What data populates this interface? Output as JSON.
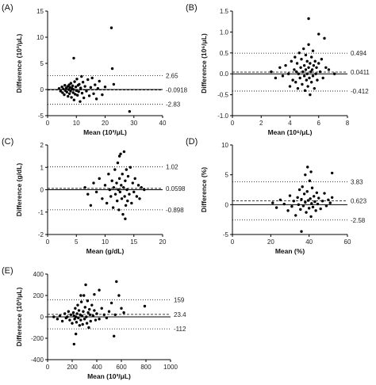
{
  "chart_data": [
    {
      "type": "scatter",
      "panel_label": "(A)",
      "xlabel": "Mean (10³/μL)",
      "ylabel": "Difference (10³/μL)",
      "xlim": [
        0,
        40
      ],
      "ylim": [
        -5,
        15
      ],
      "xticks": [
        "0",
        "10",
        "20",
        "30",
        "40"
      ],
      "yticks": [
        "-5",
        "0",
        "5",
        "10",
        "15"
      ],
      "reference_lines": [
        {
          "value": 2.65,
          "label": "2.65",
          "style": "dotted"
        },
        {
          "value": -0.0918,
          "label": "-0.0918",
          "style": "dashed"
        },
        {
          "value": -2.83,
          "label": "-2.83",
          "style": "dotted"
        }
      ],
      "zero_line": true,
      "points": [
        [
          4,
          0.2
        ],
        [
          4.5,
          -0.3
        ],
        [
          5,
          0.5
        ],
        [
          5.2,
          -0.6
        ],
        [
          5.5,
          0.1
        ],
        [
          5.8,
          -1.0
        ],
        [
          6,
          0.8
        ],
        [
          6.2,
          -0.2
        ],
        [
          6.5,
          0.3
        ],
        [
          6.7,
          -0.5
        ],
        [
          7,
          0.6
        ],
        [
          7.1,
          -1.3
        ],
        [
          7.3,
          0.0
        ],
        [
          7.5,
          0.9
        ],
        [
          7.6,
          -0.8
        ],
        [
          7.8,
          0.4
        ],
        [
          8,
          -0.3
        ],
        [
          8.1,
          1.2
        ],
        [
          8.3,
          -1.5
        ],
        [
          8.5,
          0.2
        ],
        [
          8.7,
          0.7
        ],
        [
          8.9,
          -0.6
        ],
        [
          9,
          0.0
        ],
        [
          9.1,
          6.0
        ],
        [
          9.2,
          -2.0
        ],
        [
          9.4,
          1.5
        ],
        [
          9.6,
          -0.9
        ],
        [
          9.8,
          0.5
        ],
        [
          10,
          -0.2
        ],
        [
          10.2,
          2.0
        ],
        [
          10.4,
          -1.1
        ],
        [
          10.6,
          0.8
        ],
        [
          10.8,
          -0.4
        ],
        [
          11,
          1.0
        ],
        [
          11.3,
          -2.3
        ],
        [
          11.5,
          0.3
        ],
        [
          11.8,
          2.5
        ],
        [
          12,
          -0.7
        ],
        [
          12.3,
          1.4
        ],
        [
          12.6,
          -1.6
        ],
        [
          13,
          0.6
        ],
        [
          13.5,
          -0.3
        ],
        [
          14,
          1.9
        ],
        [
          14.5,
          -1.2
        ],
        [
          15,
          0.4
        ],
        [
          15.5,
          2.2
        ],
        [
          16,
          -0.8
        ],
        [
          16.5,
          0.9
        ],
        [
          17,
          -1.8
        ],
        [
          17.5,
          0.2
        ],
        [
          18,
          1.6
        ],
        [
          19,
          -1.0
        ],
        [
          20,
          0.5
        ],
        [
          22.2,
          11.8
        ],
        [
          22.5,
          4.0
        ],
        [
          23,
          1.0
        ],
        [
          28.5,
          -4.2
        ]
      ]
    },
    {
      "type": "scatter",
      "panel_label": "(B)",
      "xlabel": "Mean (10⁶/μL)",
      "ylabel": "Difference (10⁶/μL)",
      "xlim": [
        0,
        8
      ],
      "ylim": [
        -1.0,
        1.5
      ],
      "xticks": [
        "0",
        "2",
        "4",
        "6",
        "8"
      ],
      "yticks": [
        "-1.0",
        "-0.5",
        "0.0",
        "0.5",
        "1.0",
        "1.5"
      ],
      "reference_lines": [
        {
          "value": 0.494,
          "label": "0.494",
          "style": "dotted"
        },
        {
          "value": 0.0411,
          "label": "0.0411",
          "style": "dashed"
        },
        {
          "value": -0.412,
          "label": "-0.412",
          "style": "dotted"
        }
      ],
      "zero_line": true,
      "points": [
        [
          2.7,
          0.05
        ],
        [
          3.0,
          -0.1
        ],
        [
          3.3,
          0.15
        ],
        [
          3.5,
          -0.05
        ],
        [
          3.7,
          0.2
        ],
        [
          3.9,
          0.0
        ],
        [
          4.0,
          -0.3
        ],
        [
          4.1,
          0.3
        ],
        [
          4.2,
          -0.15
        ],
        [
          4.3,
          0.1
        ],
        [
          4.35,
          0.4
        ],
        [
          4.4,
          -0.2
        ],
        [
          4.45,
          0.05
        ],
        [
          4.5,
          0.25
        ],
        [
          4.55,
          -0.35
        ],
        [
          4.6,
          0.0
        ],
        [
          4.65,
          0.5
        ],
        [
          4.7,
          -0.1
        ],
        [
          4.75,
          0.15
        ],
        [
          4.8,
          0.35
        ],
        [
          4.85,
          -0.25
        ],
        [
          4.9,
          0.05
        ],
        [
          4.95,
          0.6
        ],
        [
          5.0,
          -0.05
        ],
        [
          5.0,
          0.2
        ],
        [
          5.05,
          -0.4
        ],
        [
          5.1,
          0.1
        ],
        [
          5.1,
          0.45
        ],
        [
          5.15,
          -0.15
        ],
        [
          5.2,
          0.3
        ],
        [
          5.2,
          0.0
        ],
        [
          5.25,
          -0.3
        ],
        [
          5.3,
          0.15
        ],
        [
          5.3,
          0.7
        ],
        [
          5.35,
          -0.1
        ],
        [
          5.4,
          0.25
        ],
        [
          5.4,
          -0.5
        ],
        [
          5.45,
          0.05
        ],
        [
          5.5,
          0.4
        ],
        [
          5.5,
          -0.2
        ],
        [
          5.55,
          0.1
        ],
        [
          5.6,
          0.55
        ],
        [
          5.6,
          -0.05
        ],
        [
          5.65,
          0.2
        ],
        [
          5.7,
          -0.35
        ],
        [
          5.75,
          0.3
        ],
        [
          5.8,
          0.0
        ],
        [
          5.85,
          0.15
        ],
        [
          5.9,
          -0.15
        ],
        [
          6.0,
          0.25
        ],
        [
          6.1,
          0.05
        ],
        [
          6.2,
          0.35
        ],
        [
          6.3,
          -0.1
        ],
        [
          6.5,
          0.15
        ],
        [
          6.7,
          0.1
        ],
        [
          5.3,
          1.32
        ],
        [
          6.0,
          0.95
        ],
        [
          6.4,
          0.85
        ],
        [
          7.1,
          0.0
        ]
      ]
    },
    {
      "type": "scatter",
      "panel_label": "(C)",
      "xlabel": "Mean (g/dL)",
      "ylabel": "Difference (g/dL)",
      "xlim": [
        0,
        20
      ],
      "ylim": [
        -2,
        2
      ],
      "xticks": [
        "0",
        "5",
        "10",
        "15",
        "20"
      ],
      "yticks": [
        "-2",
        "-1",
        "0",
        "1",
        "2"
      ],
      "reference_lines": [
        {
          "value": 1.02,
          "label": "1.02",
          "style": "dotted"
        },
        {
          "value": 0.0598,
          "label": "0.0598",
          "style": "dashed"
        },
        {
          "value": -0.898,
          "label": "-0.898",
          "style": "dotted"
        }
      ],
      "zero_line": true,
      "points": [
        [
          6.5,
          0.1
        ],
        [
          7,
          -0.2
        ],
        [
          7.5,
          -0.7
        ],
        [
          8,
          0.3
        ],
        [
          8.5,
          -0.1
        ],
        [
          9,
          0.5
        ],
        [
          9.5,
          -0.4
        ],
        [
          10,
          0.2
        ],
        [
          10.3,
          -0.6
        ],
        [
          10.6,
          0.7
        ],
        [
          10.8,
          0.0
        ],
        [
          11,
          -0.3
        ],
        [
          11.2,
          0.4
        ],
        [
          11.4,
          -0.8
        ],
        [
          11.5,
          0.1
        ],
        [
          11.7,
          0.9
        ],
        [
          11.8,
          -0.2
        ],
        [
          12,
          0.3
        ],
        [
          12.1,
          -0.5
        ],
        [
          12.2,
          1.2
        ],
        [
          12.3,
          0.0
        ],
        [
          12.4,
          -0.9
        ],
        [
          12.5,
          0.5
        ],
        [
          12.6,
          -0.1
        ],
        [
          12.7,
          1.6
        ],
        [
          12.8,
          0.2
        ],
        [
          12.9,
          -0.4
        ],
        [
          13,
          0.7
        ],
        [
          13.1,
          -1.1
        ],
        [
          13.2,
          0.1
        ],
        [
          13.3,
          1.7
        ],
        [
          13.4,
          -0.3
        ],
        [
          13.5,
          0.4
        ],
        [
          13.6,
          -0.7
        ],
        [
          13.7,
          0.9
        ],
        [
          13.8,
          0.0
        ],
        [
          13.9,
          -0.5
        ],
        [
          14,
          0.6
        ],
        [
          14.2,
          -0.2
        ],
        [
          14.4,
          1.0
        ],
        [
          14.6,
          -0.6
        ],
        [
          14.8,
          0.3
        ],
        [
          15,
          -0.1
        ],
        [
          15.2,
          0.5
        ],
        [
          15.5,
          -0.3
        ],
        [
          15.8,
          0.2
        ],
        [
          16,
          -0.4
        ],
        [
          16.3,
          0.1
        ],
        [
          16.8,
          0.0
        ],
        [
          13.5,
          -1.3
        ],
        [
          12.5,
          1.5
        ]
      ]
    },
    {
      "type": "scatter",
      "panel_label": "(D)",
      "xlabel": "Mean (%)",
      "ylabel": "Difference (%)",
      "xlim": [
        0,
        60
      ],
      "ylim": [
        -5,
        10
      ],
      "xticks": [
        "0",
        "20",
        "40",
        "60"
      ],
      "yticks": [
        "-5",
        "0",
        "5",
        "10"
      ],
      "reference_lines": [
        {
          "value": 3.83,
          "label": "3.83",
          "style": "dotted"
        },
        {
          "value": 0.623,
          "label": "0.623",
          "style": "dashed"
        },
        {
          "value": -2.58,
          "label": "-2.58",
          "style": "dotted"
        }
      ],
      "zero_line": true,
      "points": [
        [
          21,
          0.3
        ],
        [
          23,
          -0.5
        ],
        [
          25,
          0.8
        ],
        [
          27,
          0.1
        ],
        [
          29,
          -1.0
        ],
        [
          30,
          1.5
        ],
        [
          31,
          -0.3
        ],
        [
          32,
          0.6
        ],
        [
          33,
          -1.8
        ],
        [
          34,
          1.2
        ],
        [
          34.5,
          0.0
        ],
        [
          35,
          2.5
        ],
        [
          35.5,
          -0.8
        ],
        [
          36,
          0.9
        ],
        [
          36.5,
          3.0
        ],
        [
          37,
          -0.2
        ],
        [
          37.5,
          1.8
        ],
        [
          38,
          0.4
        ],
        [
          38.5,
          -1.3
        ],
        [
          39,
          2.2
        ],
        [
          39.2,
          6.3
        ],
        [
          39.5,
          0.7
        ],
        [
          40,
          -0.6
        ],
        [
          40.3,
          4.0
        ],
        [
          40.6,
          1.0
        ],
        [
          41,
          -2.0
        ],
        [
          41.3,
          0.2
        ],
        [
          41.6,
          2.8
        ],
        [
          42,
          -0.4
        ],
        [
          42.5,
          1.4
        ],
        [
          43,
          0.5
        ],
        [
          43.5,
          -1.0
        ],
        [
          44,
          2.0
        ],
        [
          44.5,
          0.1
        ],
        [
          45,
          1.1
        ],
        [
          46,
          -0.7
        ],
        [
          47,
          0.6
        ],
        [
          48,
          1.9
        ],
        [
          49,
          -0.2
        ],
        [
          50,
          0.8
        ],
        [
          51,
          0.3
        ],
        [
          52,
          1.2
        ],
        [
          36,
          -4.5
        ],
        [
          38,
          5.0
        ],
        [
          41,
          5.5
        ],
        [
          52,
          5.3
        ]
      ]
    },
    {
      "type": "scatter",
      "panel_label": "(E)",
      "xlabel": "Mean (10³/μL)",
      "ylabel": "Difference (10³/μL)",
      "xlim": [
        0,
        1000
      ],
      "ylim": [
        -400,
        400
      ],
      "xticks": [
        "0",
        "200",
        "400",
        "600",
        "800",
        "1000"
      ],
      "yticks": [
        "-400",
        "-200",
        "0",
        "200",
        "400"
      ],
      "reference_lines": [
        {
          "value": 159,
          "label": "159",
          "style": "dotted"
        },
        {
          "value": 23.4,
          "label": "23.4",
          "style": "dashed"
        },
        {
          "value": -112,
          "label": "-112",
          "style": "dotted"
        }
      ],
      "zero_line": true,
      "points": [
        [
          50,
          0
        ],
        [
          80,
          -20
        ],
        [
          100,
          10
        ],
        [
          120,
          -40
        ],
        [
          140,
          30
        ],
        [
          150,
          -10
        ],
        [
          160,
          0
        ],
        [
          170,
          50
        ],
        [
          180,
          -30
        ],
        [
          190,
          20
        ],
        [
          200,
          -60
        ],
        [
          210,
          40
        ],
        [
          215,
          10
        ],
        [
          220,
          -20
        ],
        [
          225,
          80
        ],
        [
          230,
          0
        ],
        [
          235,
          -50
        ],
        [
          240,
          30
        ],
        [
          245,
          110
        ],
        [
          250,
          -10
        ],
        [
          255,
          60
        ],
        [
          260,
          -80
        ],
        [
          265,
          20
        ],
        [
          270,
          -30
        ],
        [
          275,
          140
        ],
        [
          280,
          10
        ],
        [
          285,
          -70
        ],
        [
          290,
          50
        ],
        [
          295,
          200
        ],
        [
          300,
          -20
        ],
        [
          305,
          90
        ],
        [
          310,
          300
        ],
        [
          315,
          0
        ],
        [
          320,
          -60
        ],
        [
          325,
          150
        ],
        [
          330,
          40
        ],
        [
          335,
          -100
        ],
        [
          340,
          70
        ],
        [
          345,
          20
        ],
        [
          350,
          -40
        ],
        [
          360,
          110
        ],
        [
          370,
          10
        ],
        [
          380,
          60
        ],
        [
          390,
          -30
        ],
        [
          400,
          30
        ],
        [
          420,
          -20
        ],
        [
          440,
          80
        ],
        [
          460,
          20
        ],
        [
          480,
          -10
        ],
        [
          500,
          50
        ],
        [
          520,
          130
        ],
        [
          540,
          -180
        ],
        [
          550,
          20
        ],
        [
          560,
          330
        ],
        [
          580,
          200
        ],
        [
          600,
          80
        ],
        [
          620,
          40
        ],
        [
          790,
          100
        ],
        [
          215,
          -255
        ],
        [
          270,
          200
        ],
        [
          230,
          -160
        ],
        [
          380,
          210
        ],
        [
          420,
          250
        ]
      ]
    }
  ]
}
